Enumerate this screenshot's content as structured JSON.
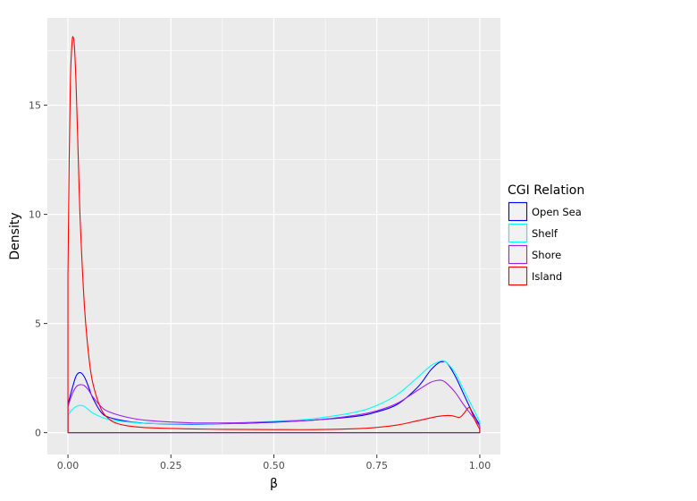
{
  "chart_data": {
    "type": "line",
    "title": "",
    "xlabel": "β",
    "ylabel": "Density",
    "xlim": [
      -0.05,
      1.05
    ],
    "ylim": [
      -1.0,
      19.0
    ],
    "x_ticks": [
      0.0,
      0.25,
      0.5,
      0.75,
      1.0
    ],
    "x_tick_labels": [
      "0.00",
      "0.25",
      "0.50",
      "0.75",
      "1.00"
    ],
    "y_ticks": [
      0,
      5,
      10,
      15
    ],
    "y_tick_labels": [
      "0",
      "5",
      "10",
      "15"
    ],
    "grid": true,
    "legend": {
      "title": "CGI Relation",
      "placement": "right"
    },
    "series": [
      {
        "name": "Open Sea",
        "color": "#0000ff",
        "x": [
          0.0,
          0.01,
          0.02,
          0.03,
          0.04,
          0.05,
          0.06,
          0.08,
          0.1,
          0.15,
          0.2,
          0.3,
          0.4,
          0.5,
          0.6,
          0.7,
          0.75,
          0.8,
          0.85,
          0.88,
          0.9,
          0.91,
          0.92,
          0.94,
          0.96,
          0.98,
          1.0
        ],
        "y": [
          1.3,
          2.0,
          2.6,
          2.75,
          2.55,
          2.1,
          1.6,
          0.95,
          0.7,
          0.5,
          0.42,
          0.38,
          0.42,
          0.48,
          0.58,
          0.75,
          0.95,
          1.3,
          2.1,
          2.85,
          3.2,
          3.25,
          3.2,
          2.6,
          1.8,
          1.0,
          0.35
        ]
      },
      {
        "name": "Shelf",
        "color": "#00ffff",
        "x": [
          0.0,
          0.01,
          0.02,
          0.03,
          0.04,
          0.05,
          0.06,
          0.08,
          0.1,
          0.15,
          0.2,
          0.3,
          0.4,
          0.5,
          0.6,
          0.7,
          0.75,
          0.8,
          0.85,
          0.88,
          0.9,
          0.91,
          0.92,
          0.94,
          0.96,
          0.98,
          1.0
        ],
        "y": [
          0.8,
          1.05,
          1.2,
          1.25,
          1.2,
          1.05,
          0.9,
          0.72,
          0.6,
          0.48,
          0.42,
          0.4,
          0.44,
          0.52,
          0.65,
          0.95,
          1.25,
          1.75,
          2.55,
          3.05,
          3.25,
          3.3,
          3.2,
          2.75,
          2.0,
          1.25,
          0.5
        ]
      },
      {
        "name": "Shore",
        "color": "#a020f0",
        "x": [
          0.0,
          0.01,
          0.02,
          0.03,
          0.04,
          0.05,
          0.06,
          0.08,
          0.1,
          0.15,
          0.2,
          0.3,
          0.4,
          0.5,
          0.6,
          0.7,
          0.75,
          0.8,
          0.85,
          0.88,
          0.9,
          0.91,
          0.92,
          0.94,
          0.96,
          0.98,
          1.0
        ],
        "y": [
          1.2,
          1.75,
          2.1,
          2.2,
          2.15,
          1.95,
          1.65,
          1.2,
          0.95,
          0.68,
          0.55,
          0.45,
          0.45,
          0.5,
          0.58,
          0.8,
          1.0,
          1.35,
          1.95,
          2.3,
          2.4,
          2.38,
          2.25,
          1.85,
          1.3,
          0.8,
          0.3
        ]
      },
      {
        "name": "Island",
        "color": "#ff0000",
        "x": [
          0.0,
          0.003,
          0.006,
          0.01,
          0.013,
          0.016,
          0.02,
          0.025,
          0.03,
          0.04,
          0.05,
          0.06,
          0.08,
          0.1,
          0.12,
          0.15,
          0.2,
          0.3,
          0.4,
          0.5,
          0.6,
          0.7,
          0.75,
          0.8,
          0.85,
          0.9,
          0.93,
          0.95,
          0.96,
          0.97,
          0.975,
          0.98,
          0.99,
          1.0
        ],
        "y": [
          7.2,
          12.5,
          16.2,
          17.9,
          18.1,
          17.6,
          15.8,
          12.6,
          9.6,
          5.8,
          3.6,
          2.3,
          1.1,
          0.62,
          0.42,
          0.3,
          0.22,
          0.17,
          0.15,
          0.14,
          0.14,
          0.18,
          0.24,
          0.35,
          0.55,
          0.75,
          0.78,
          0.7,
          0.85,
          1.1,
          1.15,
          0.95,
          0.5,
          0.15
        ]
      }
    ]
  }
}
